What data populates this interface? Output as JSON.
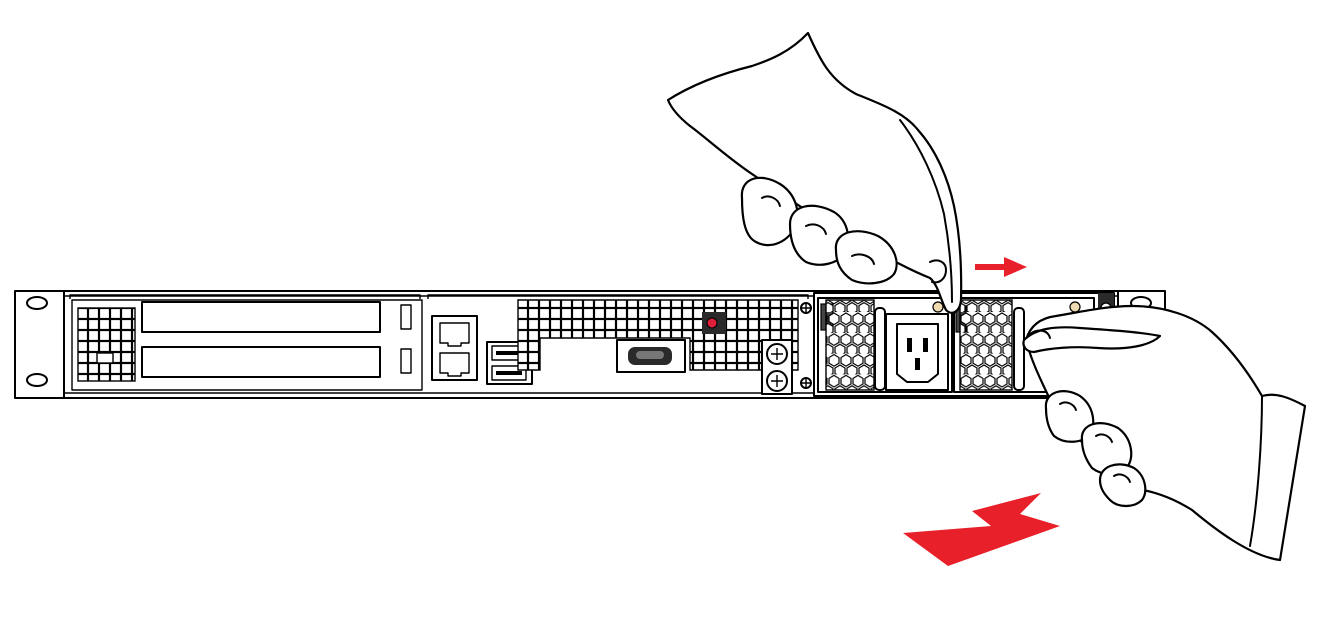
{
  "colors": {
    "background": "#ffffff",
    "line": "#000000",
    "arrow": "#e8202a",
    "indicator_led": "#e0203a",
    "latch_tab": "#eed9b0",
    "dark_fill": "#2a2a2a"
  },
  "icons": {
    "slide_arrow": "red-arrow-right-icon",
    "pull_arrow": "red-arrow-pull-out-icon",
    "upper_hand": "hand-pressing-latch-icon",
    "lower_hand": "hand-gripping-handle-icon"
  },
  "indicators": {
    "arrow_small_direction": "right",
    "arrow_large_direction": "out"
  }
}
